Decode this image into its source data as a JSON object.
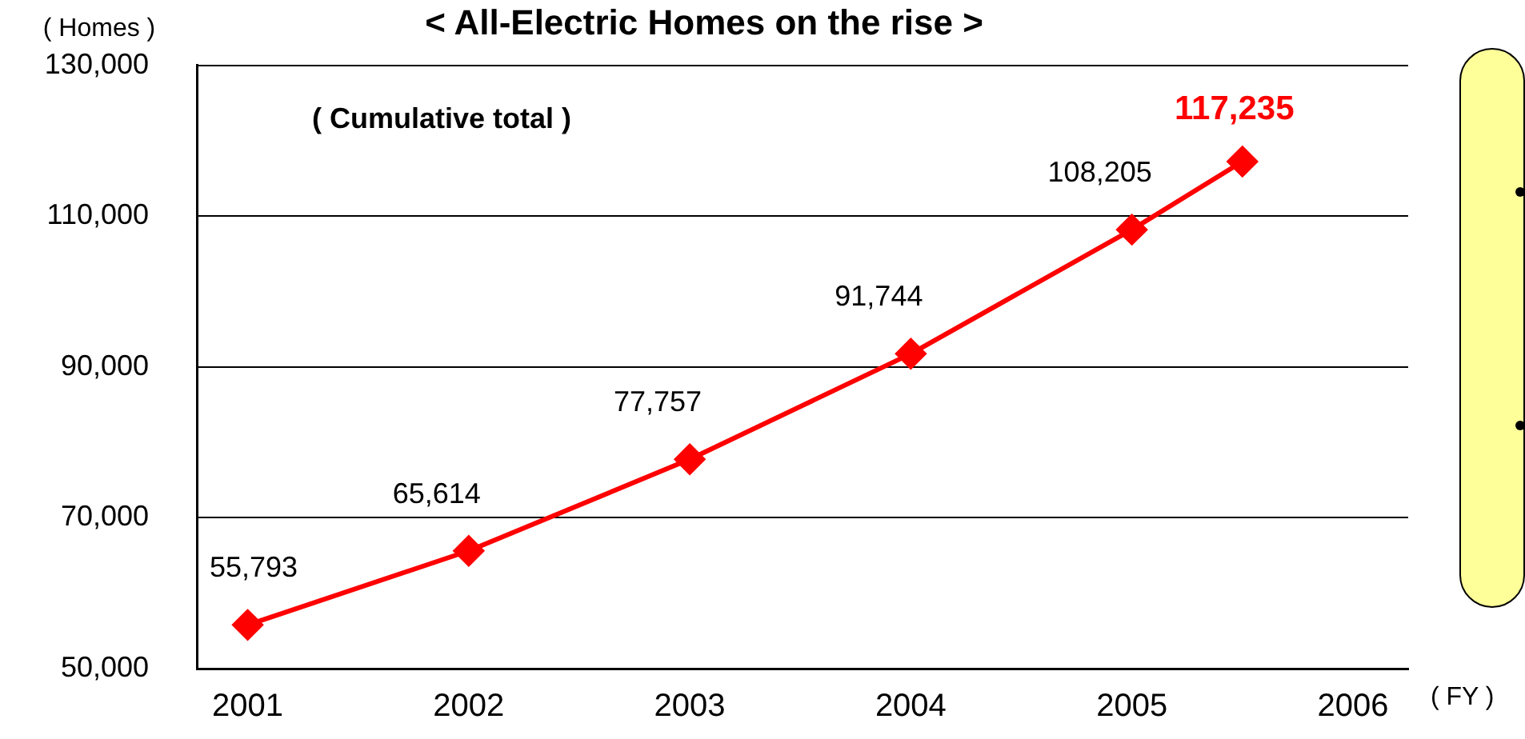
{
  "chart_data": {
    "type": "line",
    "title": "< All-Electric Homes on the rise >",
    "ylabel": "( Homes )",
    "xlabel": "( FY )",
    "x": [
      2001,
      2002,
      2003,
      2004,
      2005,
      2005.5
    ],
    "series": [
      {
        "color": "#ff0000",
        "values": [
          55793,
          65614,
          77757,
          91744,
          108205,
          117235
        ],
        "value_labels": [
          "55,793",
          "65,614",
          "77,757",
          "91,744",
          "108,205",
          "117,235"
        ]
      }
    ],
    "xlim": [
      2000.77,
      2006.25
    ],
    "xticks": [
      2001,
      2002,
      2003,
      2004,
      2005,
      2006
    ],
    "ylim": [
      50000,
      130000
    ],
    "yticks": [
      {
        "value": 50000,
        "label": "50,000"
      },
      {
        "value": 70000,
        "label": "70,000"
      },
      {
        "value": 90000,
        "label": "90,000"
      },
      {
        "value": 110000,
        "label": "110,000"
      },
      {
        "value": 130000,
        "label": "130,000"
      }
    ],
    "annotations": [
      "( Cumulative total )"
    ],
    "grid": "y",
    "legend": false,
    "marker": "diamond",
    "line_style": "solid"
  }
}
